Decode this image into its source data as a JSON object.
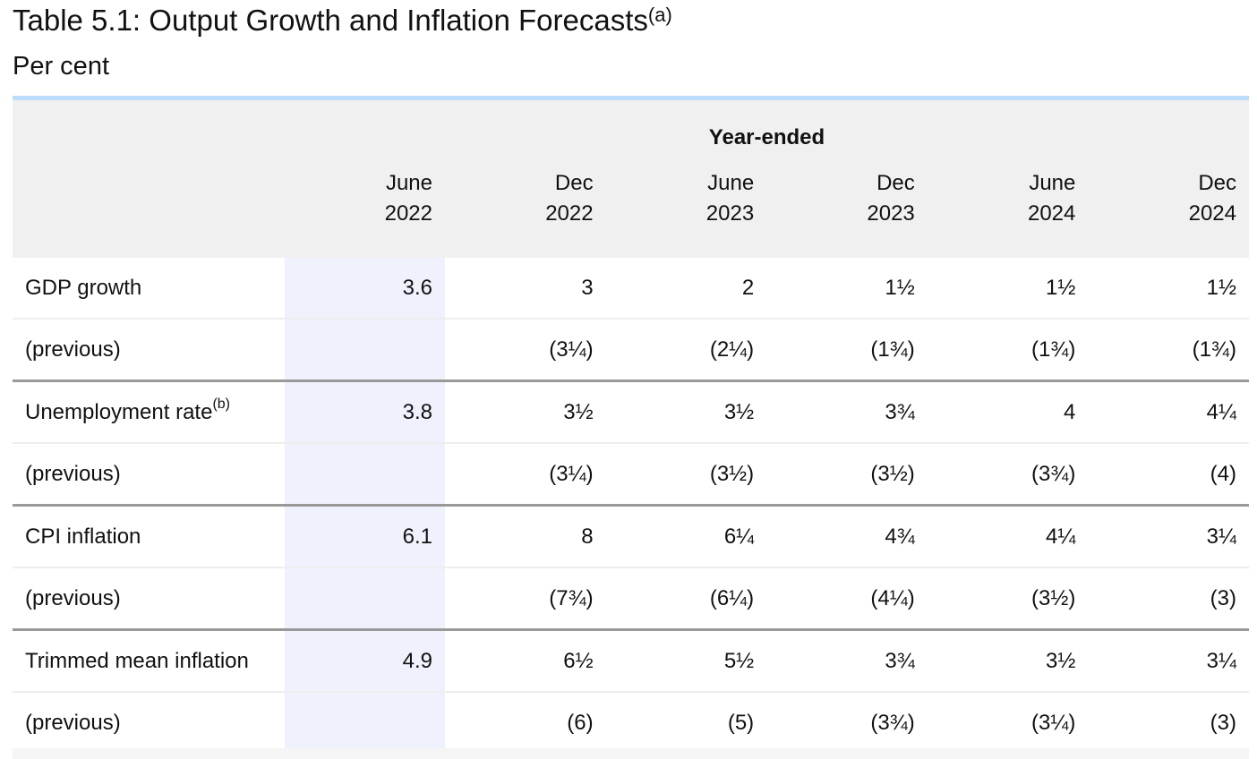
{
  "title": "Table 5.1: Output Growth and Inflation Forecasts",
  "title_note": "(a)",
  "subtitle": "Per cent",
  "header": {
    "group_label": "Year-ended",
    "columns": [
      {
        "month": "June",
        "year": "2022"
      },
      {
        "month": "Dec",
        "year": "2022"
      },
      {
        "month": "June",
        "year": "2023"
      },
      {
        "month": "Dec",
        "year": "2023"
      },
      {
        "month": "June",
        "year": "2024"
      },
      {
        "month": "Dec",
        "year": "2024"
      }
    ]
  },
  "rows": [
    {
      "label": "GDP growth",
      "note": "",
      "values": [
        "3.6",
        "3",
        "2",
        "1½",
        "1½",
        "1½"
      ],
      "previous_label": "(previous)",
      "previous": [
        "",
        "(3¼)",
        "(2¼)",
        "(1¾)",
        "(1¾)",
        "(1¾)"
      ]
    },
    {
      "label": "Unemployment rate",
      "note": "(b)",
      "values": [
        "3.8",
        "3½",
        "3½",
        "3¾",
        "4",
        "4¼"
      ],
      "previous_label": "(previous)",
      "previous": [
        "",
        "(3¼)",
        "(3½)",
        "(3½)",
        "(3¾)",
        "(4)"
      ]
    },
    {
      "label": "CPI inflation",
      "note": "",
      "values": [
        "6.1",
        "8",
        "6¼",
        "4¾",
        "4¼",
        "3¼"
      ],
      "previous_label": "(previous)",
      "previous": [
        "",
        "(7¾)",
        "(6¼)",
        "(4¼)",
        "(3½)",
        "(3)"
      ]
    },
    {
      "label": "Trimmed mean inflation",
      "note": "",
      "values": [
        "4.9",
        "6½",
        "5½",
        "3¾",
        "3½",
        "3¼"
      ],
      "previous_label": "(previous)",
      "previous": [
        "",
        "(6)",
        "(5)",
        "(3¾)",
        "(3¼)",
        "(3)"
      ]
    }
  ],
  "colors": {
    "header_bg": "#f0f0f0",
    "top_rule": "#bcdcfa",
    "highlight_column": "#eff1fd",
    "group_rule": "#999999"
  }
}
